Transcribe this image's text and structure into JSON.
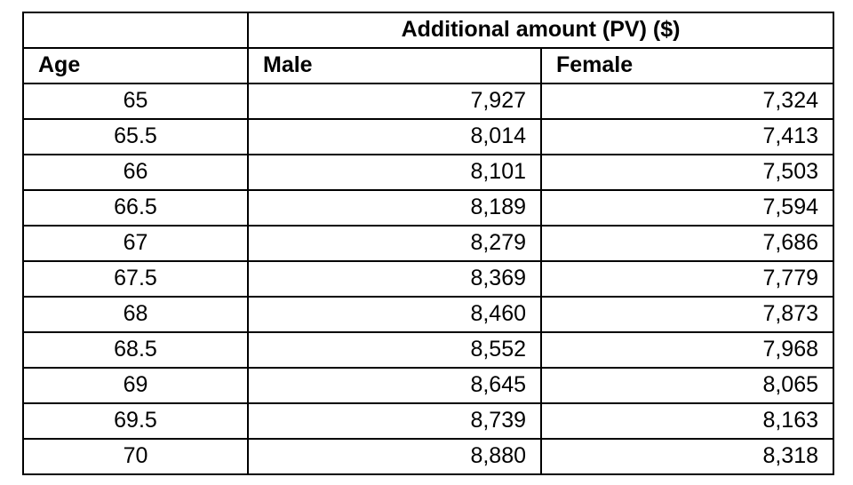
{
  "table": {
    "spanning_header": "Additional amount (PV) ($)",
    "headers": {
      "age": "Age",
      "male": "Male",
      "female": "Female"
    },
    "rows": [
      {
        "age": "65",
        "male": "7,927",
        "female": "7,324"
      },
      {
        "age": "65.5",
        "male": "8,014",
        "female": "7,413"
      },
      {
        "age": "66",
        "male": "8,101",
        "female": "7,503"
      },
      {
        "age": "66.5",
        "male": "8,189",
        "female": "7,594"
      },
      {
        "age": "67",
        "male": "8,279",
        "female": "7,686"
      },
      {
        "age": "67.5",
        "male": "8,369",
        "female": "7,779"
      },
      {
        "age": "68",
        "male": "8,460",
        "female": "7,873"
      },
      {
        "age": "68.5",
        "male": "8,552",
        "female": "7,968"
      },
      {
        "age": "69",
        "male": "8,645",
        "female": "8,065"
      },
      {
        "age": "69.5",
        "male": "8,739",
        "female": "8,163"
      },
      {
        "age": "70",
        "male": "8,880",
        "female": "8,318"
      }
    ]
  },
  "chart_data": {
    "type": "table",
    "title": "Additional amount (PV) ($)",
    "columns": [
      "Age",
      "Male",
      "Female"
    ],
    "rows": [
      [
        65,
        7927,
        7324
      ],
      [
        65.5,
        8014,
        7413
      ],
      [
        66,
        8101,
        7503
      ],
      [
        66.5,
        8189,
        7594
      ],
      [
        67,
        8279,
        7686
      ],
      [
        67.5,
        8369,
        7779
      ],
      [
        68,
        8460,
        7873
      ],
      [
        68.5,
        8552,
        7968
      ],
      [
        69,
        8645,
        8065
      ],
      [
        69.5,
        8739,
        8163
      ],
      [
        70,
        8880,
        8318
      ]
    ]
  },
  "colors": {
    "border": "#000000",
    "text": "#000000",
    "background": "#ffffff"
  }
}
